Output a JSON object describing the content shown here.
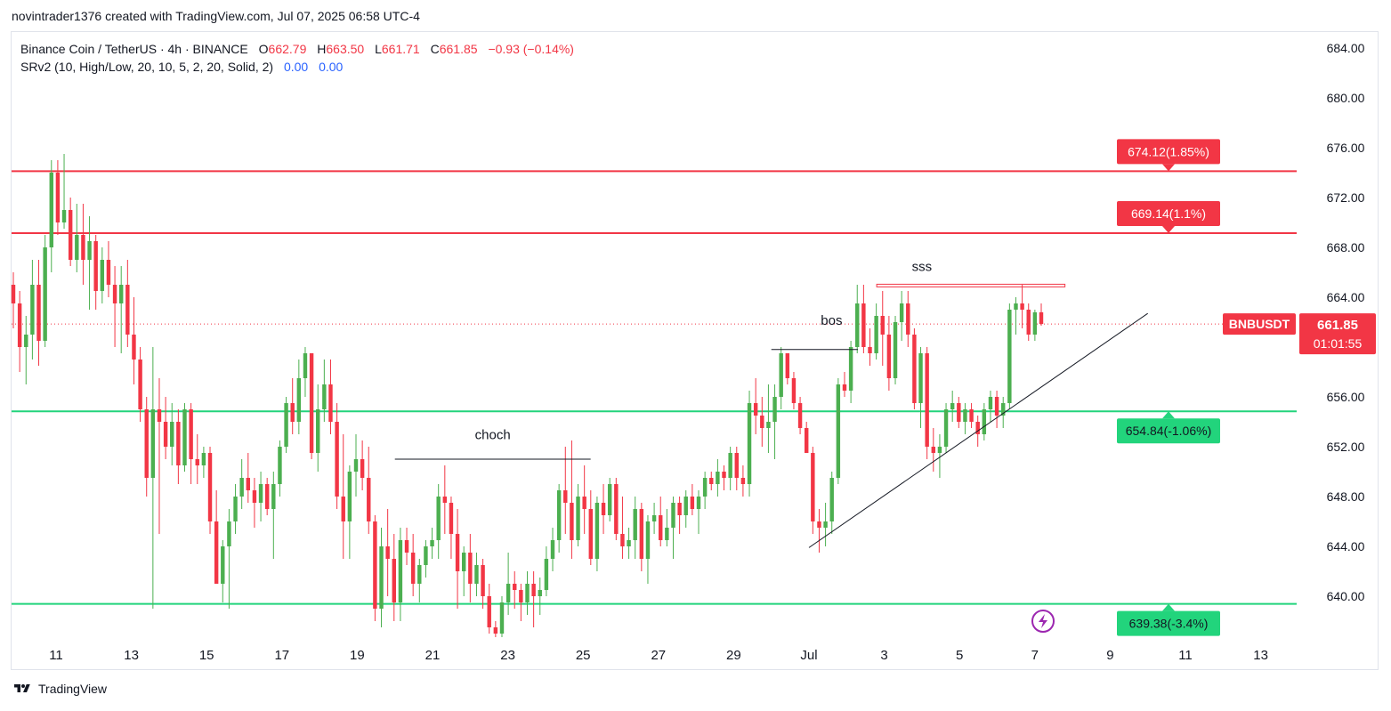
{
  "header": {
    "attribution": "novintrader1376 created with TradingView.com, Jul 07, 2025 06:58 UTC-4"
  },
  "legend": {
    "symbol": "Binance Coin / TetherUS · 4h · BINANCE",
    "o_label": "O",
    "o_value": "662.79",
    "h_label": "H",
    "h_value": "663.50",
    "l_label": "L",
    "l_value": "661.71",
    "c_label": "C",
    "c_value": "661.85",
    "change": "−0.93 (−0.14%)",
    "indicator": "SRv2 (10, High/Low, 20, 10, 5, 2, 20, Solid, 2)",
    "ind_v1": "0.00",
    "ind_v2": "0.00"
  },
  "footer": {
    "brand": "TradingView"
  },
  "colors": {
    "up": "#089981",
    "up_body": "#26a69a",
    "green_body": "#4caf50",
    "down": "#f23645",
    "resistance": "#f23645",
    "support": "#22d47c",
    "grid_text": "#131722",
    "accent": "#9c27b0"
  },
  "chart_data": {
    "type": "candlestick",
    "symbol_tag": "BNBUSDT",
    "last_price": "661.85",
    "countdown": "01:01:55",
    "ylim": [
      637,
      685.5
    ],
    "y_ticks": [
      640,
      644,
      648,
      652,
      656,
      660,
      664,
      668,
      672,
      676,
      680,
      684
    ],
    "y_tick_labels": [
      "640.00",
      "644.00",
      "648.00",
      "652.00",
      "656.00",
      "664.00",
      "668.00",
      "672.00",
      "676.00",
      "680.00",
      "684.00"
    ],
    "x_ticks": [
      {
        "label": "11",
        "day": 11
      },
      {
        "label": "13",
        "day": 13
      },
      {
        "label": "15",
        "day": 15
      },
      {
        "label": "17",
        "day": 17
      },
      {
        "label": "19",
        "day": 19
      },
      {
        "label": "21",
        "day": 21
      },
      {
        "label": "23",
        "day": 23
      },
      {
        "label": "25",
        "day": 25
      },
      {
        "label": "27",
        "day": 27
      },
      {
        "label": "29",
        "day": 29
      },
      {
        "label": "Jul",
        "day": 31
      },
      {
        "label": "3",
        "day": 33
      },
      {
        "label": "5",
        "day": 35
      },
      {
        "label": "7",
        "day": 37
      },
      {
        "label": "9",
        "day": 39
      },
      {
        "label": "11",
        "day": 41
      },
      {
        "label": "13",
        "day": 43
      }
    ],
    "levels": [
      {
        "price": 674.12,
        "label": "674.12(1.85%)",
        "kind": "resistance"
      },
      {
        "price": 669.14,
        "label": "669.14(1.1%)",
        "kind": "resistance"
      },
      {
        "price": 654.84,
        "label": "654.84(-1.06%)",
        "kind": "support"
      },
      {
        "price": 639.38,
        "label": "639.38(-3.4%)",
        "kind": "support"
      }
    ],
    "annotations": [
      {
        "text": "choch",
        "day": 22.6,
        "price": 652.6,
        "line_from": 20.0,
        "line_to": 25.2,
        "line_price": 651.0
      },
      {
        "text": "bos",
        "day": 31.6,
        "price": 661.8,
        "line_from": 30.0,
        "line_to": 32.3,
        "line_price": 659.8
      },
      {
        "text": "sss",
        "day": 34.0,
        "price": 666.1,
        "line_from": 32.8,
        "line_to": 37.8,
        "line_price": 664.9
      }
    ],
    "trendline": {
      "from": {
        "day": 31.0,
        "price": 643.9
      },
      "to": {
        "day": 40.0,
        "price": 662.7
      }
    },
    "candles": [
      [
        665.0,
        666.0,
        661.5,
        663.5
      ],
      [
        663.5,
        664.5,
        658.0,
        660.0
      ],
      [
        660.0,
        662.5,
        657.0,
        661.0
      ],
      [
        661.0,
        667.0,
        659.0,
        665.0
      ],
      [
        665.0,
        667.0,
        658.5,
        660.5
      ],
      [
        660.5,
        669.0,
        660.0,
        668.0
      ],
      [
        668.0,
        675.0,
        666.0,
        674.0
      ],
      [
        674.0,
        675.0,
        669.0,
        670.0
      ],
      [
        670.0,
        675.5,
        669.5,
        671.0
      ],
      [
        671.0,
        672.0,
        666.5,
        667.0
      ],
      [
        667.0,
        671.5,
        666.0,
        669.0
      ],
      [
        669.0,
        671.5,
        665.0,
        667.0
      ],
      [
        667.0,
        670.5,
        663.0,
        668.5
      ],
      [
        668.5,
        669.0,
        663.0,
        664.5
      ],
      [
        664.5,
        668.0,
        663.5,
        667.0
      ],
      [
        667.0,
        668.5,
        664.0,
        665.0
      ],
      [
        665.0,
        666.5,
        660.0,
        663.5
      ],
      [
        663.5,
        666.5,
        659.5,
        665.0
      ],
      [
        665.0,
        667.0,
        660.0,
        661.0
      ],
      [
        661.0,
        664.0,
        657.0,
        659.0
      ],
      [
        659.0,
        660.0,
        654.0,
        655.0
      ],
      [
        655.0,
        656.0,
        648.0,
        649.5
      ],
      [
        649.5,
        660.0,
        639.0,
        655.0
      ],
      [
        655.0,
        657.5,
        645.0,
        654.0
      ],
      [
        654.0,
        656.0,
        651.0,
        652.0
      ],
      [
        652.0,
        655.5,
        650.5,
        654.0
      ],
      [
        654.0,
        655.0,
        649.0,
        650.5
      ],
      [
        650.5,
        655.5,
        650.0,
        655.0
      ],
      [
        655.0,
        655.5,
        649.0,
        651.0
      ],
      [
        651.0,
        653.0,
        649.0,
        650.5
      ],
      [
        650.5,
        652.0,
        649.5,
        651.5
      ],
      [
        651.5,
        652.0,
        645.0,
        646.0
      ],
      [
        646.0,
        648.5,
        641.0,
        641.0
      ],
      [
        641.0,
        644.5,
        639.5,
        644.0
      ],
      [
        644.0,
        647.0,
        639.0,
        646.0
      ],
      [
        646.0,
        649.0,
        645.0,
        648.0
      ],
      [
        648.0,
        651.0,
        647.0,
        649.5
      ],
      [
        649.5,
        651.5,
        647.5,
        648.5
      ],
      [
        648.5,
        649.5,
        645.5,
        647.5
      ],
      [
        647.5,
        650.0,
        646.0,
        649.0
      ],
      [
        649.0,
        649.5,
        646.5,
        647.0
      ],
      [
        647.0,
        650.0,
        643.0,
        649.0
      ],
      [
        649.0,
        652.5,
        648.0,
        652.0
      ],
      [
        652.0,
        656.0,
        651.5,
        655.5
      ],
      [
        655.5,
        657.5,
        653.0,
        654.0
      ],
      [
        654.0,
        659.0,
        653.0,
        657.5
      ],
      [
        657.5,
        660.0,
        656.0,
        659.5
      ],
      [
        659.5,
        659.5,
        651.0,
        651.5
      ],
      [
        651.5,
        657.0,
        650.0,
        655.0
      ],
      [
        655.0,
        659.0,
        654.0,
        657.0
      ],
      [
        657.0,
        659.0,
        653.0,
        654.0
      ],
      [
        654.0,
        655.5,
        647.0,
        648.0
      ],
      [
        648.0,
        653.0,
        643.0,
        646.0
      ],
      [
        646.0,
        650.5,
        643.0,
        650.0
      ],
      [
        650.0,
        653.0,
        648.0,
        651.0
      ],
      [
        651.0,
        652.5,
        648.5,
        649.5
      ],
      [
        649.5,
        652.0,
        645.0,
        646.0
      ],
      [
        646.0,
        646.5,
        638.0,
        639.0
      ],
      [
        639.0,
        645.5,
        637.5,
        644.0
      ],
      [
        644.0,
        647.0,
        640.0,
        643.0
      ],
      [
        643.0,
        645.0,
        638.0,
        639.5
      ],
      [
        639.5,
        645.5,
        638.0,
        644.5
      ],
      [
        644.5,
        645.5,
        642.5,
        643.5
      ],
      [
        643.5,
        645.0,
        640.0,
        641.0
      ],
      [
        641.0,
        643.0,
        639.5,
        642.5
      ],
      [
        642.5,
        644.5,
        641.5,
        644.0
      ],
      [
        644.0,
        645.5,
        643.0,
        644.5
      ],
      [
        644.5,
        649.0,
        643.0,
        648.0
      ],
      [
        648.0,
        650.5,
        645.0,
        647.5
      ],
      [
        647.5,
        648.0,
        643.0,
        645.0
      ],
      [
        645.0,
        647.0,
        639.0,
        642.0
      ],
      [
        642.0,
        644.0,
        640.0,
        643.5
      ],
      [
        643.5,
        645.0,
        639.5,
        641.0
      ],
      [
        641.0,
        643.5,
        640.0,
        642.5
      ],
      [
        642.5,
        643.0,
        639.0,
        640.0
      ],
      [
        640.0,
        641.0,
        637.0,
        637.5
      ],
      [
        637.5,
        638.0,
        636.5,
        637.0
      ],
      [
        637.0,
        640.0,
        636.0,
        639.5
      ],
      [
        639.5,
        643.5,
        638.5,
        641.0
      ],
      [
        641.0,
        642.0,
        639.0,
        640.5
      ],
      [
        640.5,
        641.0,
        638.0,
        639.5
      ],
      [
        639.5,
        642.0,
        638.5,
        641.0
      ],
      [
        641.0,
        642.0,
        637.5,
        640.0
      ],
      [
        640.0,
        641.5,
        638.5,
        640.5
      ],
      [
        640.5,
        644.0,
        640.0,
        643.0
      ],
      [
        643.0,
        645.5,
        642.0,
        644.5
      ],
      [
        644.5,
        649.0,
        643.5,
        648.5
      ],
      [
        648.5,
        652.0,
        645.0,
        647.5
      ],
      [
        647.5,
        652.5,
        643.0,
        644.5
      ],
      [
        644.5,
        649.0,
        644.0,
        648.0
      ],
      [
        648.0,
        650.5,
        645.0,
        647.0
      ],
      [
        647.0,
        648.5,
        642.5,
        643.0
      ],
      [
        643.0,
        648.0,
        642.0,
        647.5
      ],
      [
        647.5,
        649.0,
        645.0,
        646.5
      ],
      [
        646.5,
        649.5,
        646.0,
        649.0
      ],
      [
        649.0,
        649.5,
        644.5,
        645.0
      ],
      [
        645.0,
        648.0,
        643.0,
        644.0
      ],
      [
        644.0,
        645.5,
        643.0,
        644.5
      ],
      [
        644.5,
        648.0,
        643.0,
        647.0
      ],
      [
        647.0,
        647.5,
        642.0,
        643.0
      ],
      [
        643.0,
        646.5,
        641.0,
        646.0
      ],
      [
        646.0,
        647.5,
        645.0,
        646.5
      ],
      [
        646.5,
        648.0,
        644.0,
        644.5
      ],
      [
        644.5,
        647.0,
        644.0,
        645.5
      ],
      [
        645.5,
        648.0,
        643.0,
        647.5
      ],
      [
        647.5,
        648.0,
        645.0,
        646.5
      ],
      [
        646.5,
        648.5,
        645.5,
        648.0
      ],
      [
        648.0,
        649.0,
        646.5,
        647.0
      ],
      [
        647.0,
        648.5,
        645.0,
        648.0
      ],
      [
        648.0,
        650.0,
        647.0,
        649.5
      ],
      [
        649.5,
        650.0,
        648.5,
        649.0
      ],
      [
        649.0,
        651.0,
        648.0,
        650.0
      ],
      [
        650.0,
        650.5,
        648.5,
        649.5
      ],
      [
        649.5,
        652.0,
        648.5,
        651.5
      ],
      [
        651.5,
        652.0,
        648.5,
        649.5
      ],
      [
        649.5,
        650.5,
        648.0,
        649.0
      ],
      [
        649.0,
        656.5,
        648.0,
        655.5
      ],
      [
        655.5,
        657.5,
        653.0,
        654.5
      ],
      [
        654.5,
        656.0,
        652.0,
        653.5
      ],
      [
        653.5,
        657.0,
        651.5,
        654.0
      ],
      [
        654.0,
        657.0,
        651.0,
        656.0
      ],
      [
        656.0,
        660.0,
        655.0,
        659.5
      ],
      [
        659.5,
        659.5,
        657.0,
        657.5
      ],
      [
        657.5,
        658.0,
        655.0,
        655.5
      ],
      [
        655.5,
        656.0,
        653.0,
        653.5
      ],
      [
        653.5,
        654.0,
        651.5,
        651.5
      ],
      [
        651.5,
        652.0,
        645.0,
        646.0
      ],
      [
        646.0,
        647.0,
        643.5,
        645.5
      ],
      [
        645.5,
        647.5,
        644.0,
        646.0
      ],
      [
        646.0,
        650.0,
        645.0,
        649.5
      ],
      [
        649.5,
        657.5,
        649.0,
        657.0
      ],
      [
        657.0,
        658.0,
        656.0,
        656.5
      ],
      [
        656.5,
        660.5,
        655.5,
        660.0
      ],
      [
        660.0,
        665.0,
        659.5,
        663.5
      ],
      [
        663.5,
        665.0,
        659.5,
        660.0
      ],
      [
        660.0,
        661.5,
        658.5,
        659.5
      ],
      [
        659.5,
        663.5,
        659.0,
        662.5
      ],
      [
        662.5,
        664.5,
        658.5,
        661.0
      ],
      [
        661.0,
        662.5,
        656.5,
        657.5
      ],
      [
        657.5,
        662.5,
        657.0,
        662.0
      ],
      [
        662.0,
        664.5,
        660.5,
        663.5
      ],
      [
        663.5,
        664.5,
        660.0,
        661.0
      ],
      [
        661.0,
        661.5,
        655.0,
        655.5
      ],
      [
        655.5,
        660.0,
        653.5,
        659.5
      ],
      [
        659.5,
        660.0,
        651.0,
        652.0
      ],
      [
        652.0,
        653.5,
        650.0,
        651.5
      ],
      [
        651.5,
        653.0,
        649.5,
        652.0
      ],
      [
        652.0,
        655.5,
        651.5,
        655.0
      ],
      [
        655.0,
        656.5,
        654.0,
        655.5
      ],
      [
        655.5,
        656.0,
        653.5,
        654.0
      ],
      [
        654.0,
        655.5,
        653.0,
        655.0
      ],
      [
        655.0,
        655.5,
        653.5,
        654.0
      ],
      [
        654.0,
        654.5,
        652.0,
        653.0
      ],
      [
        653.0,
        655.5,
        652.5,
        655.0
      ],
      [
        655.0,
        656.5,
        654.0,
        656.0
      ],
      [
        656.0,
        656.5,
        653.5,
        654.5
      ],
      [
        654.5,
        656.0,
        653.5,
        655.5
      ],
      [
        655.5,
        663.5,
        655.0,
        663.0
      ],
      [
        663.0,
        664.0,
        661.0,
        663.5
      ],
      [
        663.5,
        665.0,
        661.5,
        663.0
      ],
      [
        663.0,
        663.5,
        660.5,
        661.0
      ],
      [
        661.0,
        663.0,
        660.5,
        662.79
      ],
      [
        662.79,
        663.5,
        661.71,
        661.85
      ]
    ]
  }
}
